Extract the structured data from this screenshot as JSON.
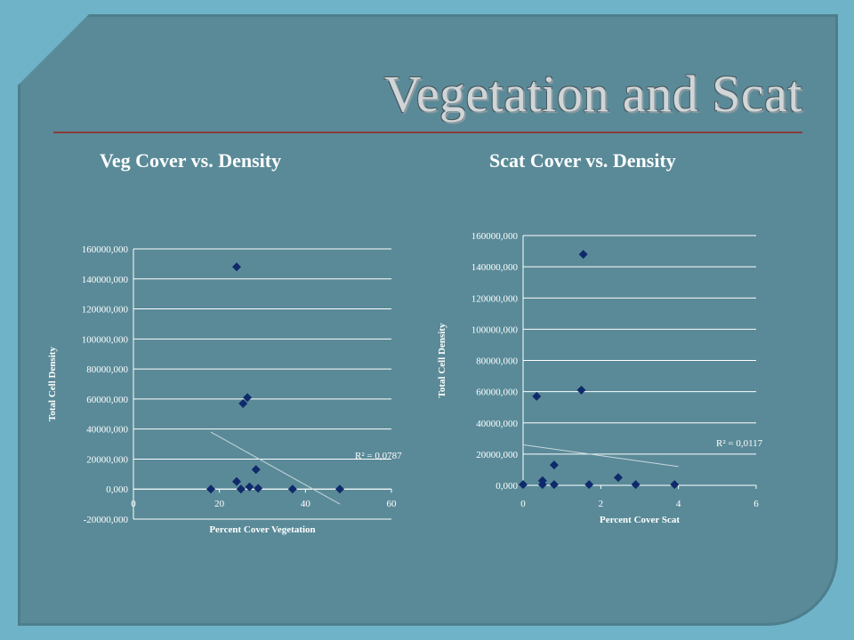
{
  "slide": {
    "title": "Vegetation and Scat"
  },
  "chart_data": [
    {
      "type": "scatter",
      "title": "Veg Cover vs. Density",
      "xlabel": "Percent Cover Vegetation",
      "ylabel": "Total Cell Density",
      "xlim": [
        0,
        60
      ],
      "ylim": [
        -20000,
        160000
      ],
      "x_ticks": [
        0,
        20,
        40,
        60
      ],
      "x_tick_labels": [
        "0",
        "20",
        "40",
        "60"
      ],
      "y_ticks": [
        -20000,
        0,
        20000,
        40000,
        60000,
        80000,
        100000,
        120000,
        140000,
        160000
      ],
      "y_tick_labels": [
        "-20000,000",
        "0,000",
        "20000,000",
        "40000,000",
        "60000,000",
        "80000,000",
        "100000,000",
        "120000,000",
        "140000,000",
        "160000,000"
      ],
      "grid": "horizontal",
      "marker": "diamond",
      "marker_color": "#0f2a6b",
      "points": [
        {
          "x": 18,
          "y": 0
        },
        {
          "x": 24,
          "y": 148000
        },
        {
          "x": 24,
          "y": 5000
        },
        {
          "x": 25,
          "y": 0
        },
        {
          "x": 25.5,
          "y": 57000
        },
        {
          "x": 26.5,
          "y": 61000
        },
        {
          "x": 27,
          "y": 1500
        },
        {
          "x": 28.5,
          "y": 13000
        },
        {
          "x": 29,
          "y": 500
        },
        {
          "x": 37,
          "y": 0
        },
        {
          "x": 48,
          "y": 0
        }
      ],
      "trendline": {
        "x": [
          18,
          48
        ],
        "y": [
          38000,
          -10000
        ],
        "color": "#c8d8dc"
      },
      "annotation": "R² = 0,0787"
    },
    {
      "type": "scatter",
      "title": "Scat Cover vs. Density",
      "xlabel": "Percent Cover Scat",
      "ylabel": "Total Cell Density",
      "xlim": [
        0,
        6
      ],
      "ylim": [
        0,
        160000
      ],
      "x_ticks": [
        0,
        2,
        4,
        6
      ],
      "x_tick_labels": [
        "0",
        "2",
        "4",
        "6"
      ],
      "y_ticks": [
        0,
        20000,
        40000,
        60000,
        80000,
        100000,
        120000,
        140000,
        160000
      ],
      "y_tick_labels": [
        "0,000",
        "20000,000",
        "40000,000",
        "60000,000",
        "80000,000",
        "100000,000",
        "120000,000",
        "140000,000",
        "160000,000"
      ],
      "grid": "horizontal",
      "marker": "diamond",
      "marker_color": "#0f2a6b",
      "points": [
        {
          "x": 0,
          "y": 500
        },
        {
          "x": 0.35,
          "y": 57000
        },
        {
          "x": 0.5,
          "y": 3000
        },
        {
          "x": 0.5,
          "y": 500
        },
        {
          "x": 0.8,
          "y": 13000
        },
        {
          "x": 0.8,
          "y": 500
        },
        {
          "x": 1.5,
          "y": 61000
        },
        {
          "x": 1.55,
          "y": 148000
        },
        {
          "x": 1.7,
          "y": 500
        },
        {
          "x": 2.45,
          "y": 5000
        },
        {
          "x": 2.9,
          "y": 500
        },
        {
          "x": 3.9,
          "y": 500
        }
      ],
      "trendline": {
        "x": [
          0,
          4
        ],
        "y": [
          26000,
          12000
        ],
        "color": "#c8d8dc"
      },
      "annotation": "R² = 0,0117"
    }
  ]
}
